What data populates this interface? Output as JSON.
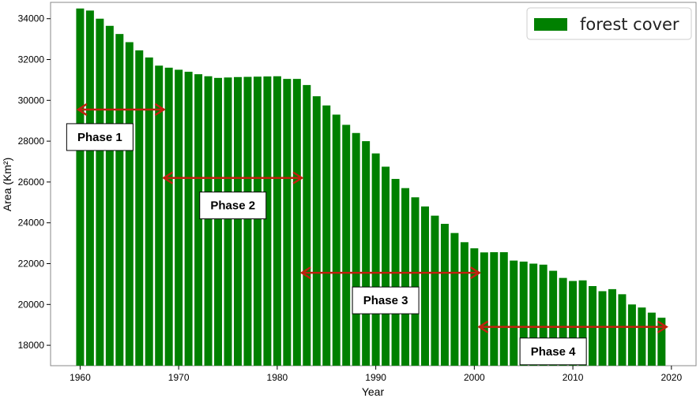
{
  "chart_data": {
    "type": "bar",
    "title": "",
    "xlabel": "Year",
    "ylabel": "Area (Km²)",
    "xlim": [
      1957,
      2022.5
    ],
    "ylim": [
      17000,
      34800
    ],
    "x_ticks": [
      1960,
      1970,
      1980,
      1990,
      2000,
      2010,
      2020
    ],
    "y_ticks": [
      18000,
      20000,
      22000,
      24000,
      26000,
      28000,
      30000,
      32000,
      34000
    ],
    "grid": false,
    "legend_placement": "top-right",
    "series": [
      {
        "name": "forest cover",
        "color": "#008000",
        "x": [
          1960,
          1961,
          1962,
          1963,
          1964,
          1965,
          1966,
          1967,
          1968,
          1969,
          1970,
          1971,
          1972,
          1973,
          1974,
          1975,
          1976,
          1977,
          1978,
          1979,
          1980,
          1981,
          1982,
          1983,
          1984,
          1985,
          1986,
          1987,
          1988,
          1989,
          1990,
          1991,
          1992,
          1993,
          1994,
          1995,
          1996,
          1997,
          1998,
          1999,
          2000,
          2001,
          2002,
          2003,
          2004,
          2005,
          2006,
          2007,
          2008,
          2009,
          2010,
          2011,
          2012,
          2013,
          2014,
          2015,
          2016,
          2017,
          2018,
          2019
        ],
        "values": [
          34500,
          34400,
          34000,
          33650,
          33250,
          32850,
          32450,
          32100,
          31700,
          31600,
          31500,
          31400,
          31280,
          31180,
          31100,
          31120,
          31140,
          31150,
          31160,
          31170,
          31180,
          31050,
          31050,
          30750,
          30200,
          29750,
          29300,
          28800,
          28400,
          28000,
          27400,
          26750,
          26150,
          25700,
          25250,
          24800,
          24350,
          23950,
          23500,
          23050,
          22750,
          22550,
          22560,
          22560,
          22150,
          22100,
          22000,
          21950,
          21650,
          21300,
          21150,
          21180,
          20900,
          20650,
          20750,
          20500,
          20000,
          19850,
          19600,
          19350
        ]
      }
    ],
    "annotations": [
      {
        "label": "Phase 1",
        "arrow_x": [
          1959.8,
          1968.5
        ],
        "arrow_y": 29550,
        "box_x": 1962.0,
        "box_y": 28200
      },
      {
        "label": "Phase 2",
        "arrow_x": [
          1968.5,
          1982.5
        ],
        "arrow_y": 26200,
        "box_x": 1975.5,
        "box_y": 24850
      },
      {
        "label": "Phase 3",
        "arrow_x": [
          1982.5,
          2000.5
        ],
        "arrow_y": 21550,
        "box_x": 1991.0,
        "box_y": 20200
      },
      {
        "label": "Phase 4",
        "arrow_x": [
          2000.5,
          2019.5
        ],
        "arrow_y": 18900,
        "box_x": 2008.0,
        "box_y": 17700
      }
    ],
    "arrow_color": "#c0210e"
  }
}
